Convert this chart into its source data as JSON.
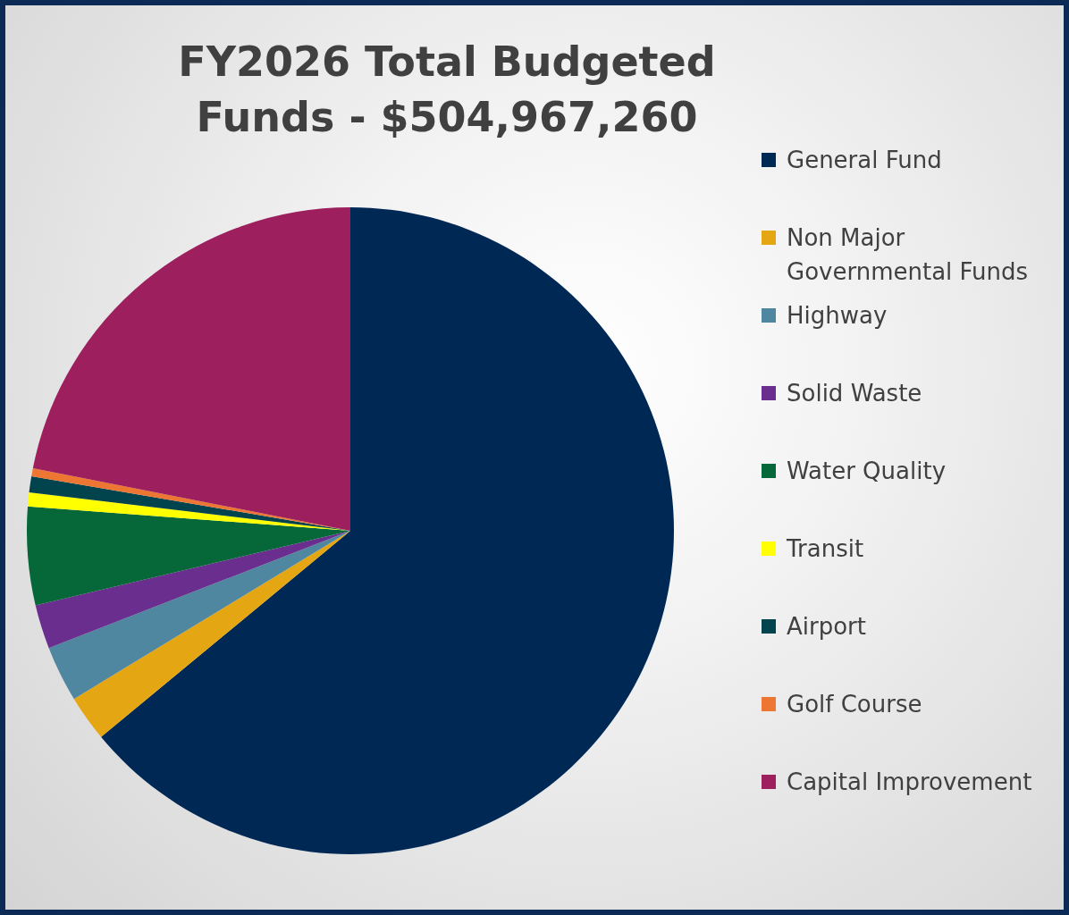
{
  "chart_data": {
    "type": "pie",
    "title": "FY2026 Total Budgeted Funds - $504,967,260",
    "categories": [
      "General Fund",
      "Non Major Governmental Funds",
      "Highway",
      "Solid Waste",
      "Water Quality",
      "Transit",
      "Airport",
      "Golf Course",
      "Capital Improvement"
    ],
    "values": [
      64.0,
      2.3,
      2.8,
      2.2,
      4.9,
      0.7,
      0.8,
      0.4,
      21.9
    ],
    "colors": [
      "#002855",
      "#e5a614",
      "#4f87a0",
      "#6a2f8e",
      "#066839",
      "#ffff00",
      "#02444d",
      "#ec7632",
      "#9e1f5e"
    ],
    "legend": "right"
  }
}
